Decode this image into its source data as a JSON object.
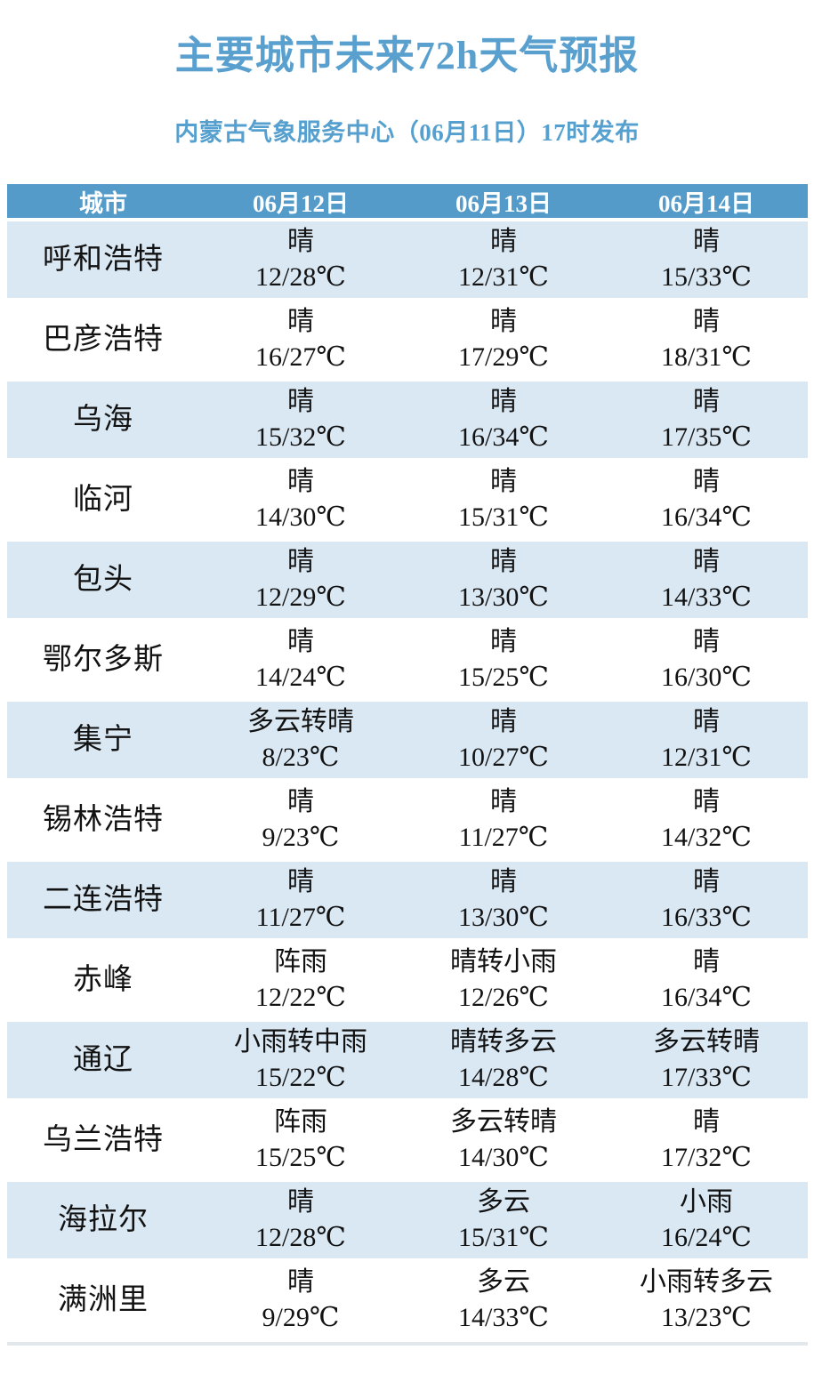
{
  "chart_data": {
    "type": "table",
    "title": "主要城市未来72h天气预报",
    "subtitle": "内蒙古气象服务中心（06月11日）17时发布",
    "columns": [
      "城市",
      "06月12日",
      "06月13日",
      "06月14日"
    ],
    "rows": [
      {
        "city": "呼和浩特",
        "days": [
          {
            "weather": "晴",
            "temp": "12/28℃",
            "low_c": 12,
            "high_c": 28
          },
          {
            "weather": "晴",
            "temp": "12/31℃",
            "low_c": 12,
            "high_c": 31
          },
          {
            "weather": "晴",
            "temp": "15/33℃",
            "low_c": 15,
            "high_c": 33
          }
        ]
      },
      {
        "city": "巴彦浩特",
        "days": [
          {
            "weather": "晴",
            "temp": "16/27℃",
            "low_c": 16,
            "high_c": 27
          },
          {
            "weather": "晴",
            "temp": "17/29℃",
            "low_c": 17,
            "high_c": 29
          },
          {
            "weather": "晴",
            "temp": "18/31℃",
            "low_c": 18,
            "high_c": 31
          }
        ]
      },
      {
        "city": "乌海",
        "days": [
          {
            "weather": "晴",
            "temp": "15/32℃",
            "low_c": 15,
            "high_c": 32
          },
          {
            "weather": "晴",
            "temp": "16/34℃",
            "low_c": 16,
            "high_c": 34
          },
          {
            "weather": "晴",
            "temp": "17/35℃",
            "low_c": 17,
            "high_c": 35
          }
        ]
      },
      {
        "city": "临河",
        "days": [
          {
            "weather": "晴",
            "temp": "14/30℃",
            "low_c": 14,
            "high_c": 30
          },
          {
            "weather": "晴",
            "temp": "15/31℃",
            "low_c": 15,
            "high_c": 31
          },
          {
            "weather": "晴",
            "temp": "16/34℃",
            "low_c": 16,
            "high_c": 34
          }
        ]
      },
      {
        "city": "包头",
        "days": [
          {
            "weather": "晴",
            "temp": "12/29℃",
            "low_c": 12,
            "high_c": 29
          },
          {
            "weather": "晴",
            "temp": "13/30℃",
            "low_c": 13,
            "high_c": 30
          },
          {
            "weather": "晴",
            "temp": "14/33℃",
            "low_c": 14,
            "high_c": 33
          }
        ]
      },
      {
        "city": "鄂尔多斯",
        "days": [
          {
            "weather": "晴",
            "temp": "14/24℃",
            "low_c": 14,
            "high_c": 24
          },
          {
            "weather": "晴",
            "temp": "15/25℃",
            "low_c": 15,
            "high_c": 25
          },
          {
            "weather": "晴",
            "temp": "16/30℃",
            "low_c": 16,
            "high_c": 30
          }
        ]
      },
      {
        "city": "集宁",
        "days": [
          {
            "weather": "多云转晴",
            "temp": "8/23℃",
            "low_c": 8,
            "high_c": 23
          },
          {
            "weather": "晴",
            "temp": "10/27℃",
            "low_c": 10,
            "high_c": 27
          },
          {
            "weather": "晴",
            "temp": "12/31℃",
            "low_c": 12,
            "high_c": 31
          }
        ]
      },
      {
        "city": "锡林浩特",
        "days": [
          {
            "weather": "晴",
            "temp": "9/23℃",
            "low_c": 9,
            "high_c": 23
          },
          {
            "weather": "晴",
            "temp": "11/27℃",
            "low_c": 11,
            "high_c": 27
          },
          {
            "weather": "晴",
            "temp": "14/32℃",
            "low_c": 14,
            "high_c": 32
          }
        ]
      },
      {
        "city": "二连浩特",
        "days": [
          {
            "weather": "晴",
            "temp": "11/27℃",
            "low_c": 11,
            "high_c": 27
          },
          {
            "weather": "晴",
            "temp": "13/30℃",
            "low_c": 13,
            "high_c": 30
          },
          {
            "weather": "晴",
            "temp": "16/33℃",
            "low_c": 16,
            "high_c": 33
          }
        ]
      },
      {
        "city": "赤峰",
        "days": [
          {
            "weather": "阵雨",
            "temp": "12/22℃",
            "low_c": 12,
            "high_c": 22
          },
          {
            "weather": "晴转小雨",
            "temp": "12/26℃",
            "low_c": 12,
            "high_c": 26
          },
          {
            "weather": "晴",
            "temp": "16/34℃",
            "low_c": 16,
            "high_c": 34
          }
        ]
      },
      {
        "city": "通辽",
        "days": [
          {
            "weather": "小雨转中雨",
            "temp": "15/22℃",
            "low_c": 15,
            "high_c": 22
          },
          {
            "weather": "晴转多云",
            "temp": "14/28℃",
            "low_c": 14,
            "high_c": 28
          },
          {
            "weather": "多云转晴",
            "temp": "17/33℃",
            "low_c": 17,
            "high_c": 33
          }
        ]
      },
      {
        "city": "乌兰浩特",
        "days": [
          {
            "weather": "阵雨",
            "temp": "15/25℃",
            "low_c": 15,
            "high_c": 25
          },
          {
            "weather": "多云转晴",
            "temp": "14/30℃",
            "low_c": 14,
            "high_c": 30
          },
          {
            "weather": "晴",
            "temp": "17/32℃",
            "low_c": 17,
            "high_c": 32
          }
        ]
      },
      {
        "city": "海拉尔",
        "days": [
          {
            "weather": "晴",
            "temp": "12/28℃",
            "low_c": 12,
            "high_c": 28
          },
          {
            "weather": "多云",
            "temp": "15/31℃",
            "low_c": 15,
            "high_c": 31
          },
          {
            "weather": "小雨",
            "temp": "16/24℃",
            "low_c": 16,
            "high_c": 24
          }
        ]
      },
      {
        "city": "满洲里",
        "days": [
          {
            "weather": "晴",
            "temp": "9/29℃",
            "low_c": 9,
            "high_c": 29
          },
          {
            "weather": "多云",
            "temp": "14/33℃",
            "low_c": 14,
            "high_c": 33
          },
          {
            "weather": "小雨转多云",
            "temp": "13/23℃",
            "low_c": 13,
            "high_c": 23
          }
        ]
      }
    ],
    "layout": {
      "alt_row_striping": true,
      "header_bg": "#549BC9",
      "alt_row_bg": "#DAE8F4",
      "title_color": "#59A0CE",
      "body_text_color": "#121212"
    }
  }
}
